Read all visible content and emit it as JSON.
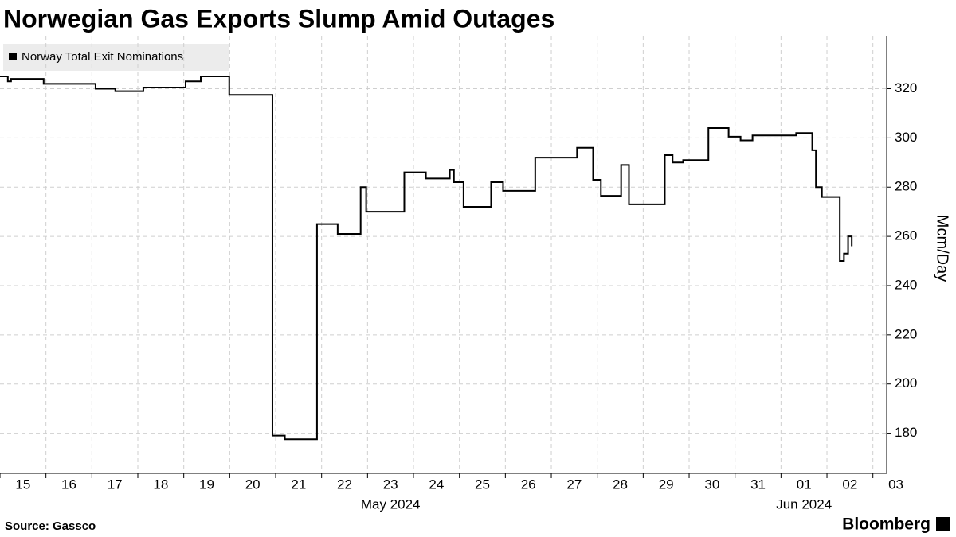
{
  "chart_data": {
    "type": "step-line",
    "title": "Norwegian Gas Exports Slump Amid Outages",
    "y_label": "Mcm/Day",
    "source": "Source: Gassco",
    "brand": "Bloomberg",
    "x_group_labels": [
      "May 2024",
      "Jun 2024"
    ],
    "xlim": [
      0,
      19.3
    ],
    "xticks": [
      {
        "value": 0,
        "label": "15"
      },
      {
        "value": 1,
        "label": "16"
      },
      {
        "value": 2,
        "label": "17"
      },
      {
        "value": 3,
        "label": "18"
      },
      {
        "value": 4,
        "label": "19"
      },
      {
        "value": 5,
        "label": "20"
      },
      {
        "value": 6,
        "label": "21"
      },
      {
        "value": 7,
        "label": "22"
      },
      {
        "value": 8,
        "label": "23"
      },
      {
        "value": 9,
        "label": "24"
      },
      {
        "value": 10,
        "label": "25"
      },
      {
        "value": 11,
        "label": "26"
      },
      {
        "value": 12,
        "label": "27"
      },
      {
        "value": 13,
        "label": "28"
      },
      {
        "value": 14,
        "label": "29"
      },
      {
        "value": 15,
        "label": "30"
      },
      {
        "value": 16,
        "label": "31"
      },
      {
        "value": 17,
        "label": "01"
      },
      {
        "value": 18,
        "label": "02"
      },
      {
        "value": 19,
        "label": "03"
      }
    ],
    "ylim": [
      163.7,
      341.5
    ],
    "yticks": [
      180,
      200,
      220,
      240,
      260,
      280,
      300,
      320
    ],
    "grid": true,
    "series": [
      {
        "name": "Norway Total Exit Nominations",
        "color": "#000000",
        "x": [
          0,
          0.17,
          0.24,
          0.95,
          2.08,
          2.51,
          3.12,
          4.04,
          4.37,
          4.99,
          5.93,
          6.2,
          6.9,
          7.35,
          7.85,
          7.97,
          8.8,
          9.27,
          9.79,
          9.88,
          10.09,
          10.69,
          10.95,
          11.65,
          12.56,
          12.91,
          13.08,
          13.52,
          13.69,
          14.47,
          14.64,
          14.87,
          15.42,
          15.86,
          16.12,
          16.38,
          17.33,
          17.68,
          17.76,
          17.89,
          18.28,
          18.37,
          18.46,
          18.54
        ],
        "values": [
          325,
          323,
          324,
          322,
          320,
          319,
          320.5,
          323,
          325,
          317.5,
          179,
          177.5,
          265,
          261,
          280,
          270,
          286,
          283.5,
          287,
          282,
          272,
          282,
          278.5,
          292,
          296,
          283,
          276.5,
          289,
          273,
          293,
          290,
          291,
          304,
          300.5,
          299,
          301,
          302,
          295,
          280,
          276,
          250,
          253,
          260,
          256
        ]
      }
    ]
  }
}
